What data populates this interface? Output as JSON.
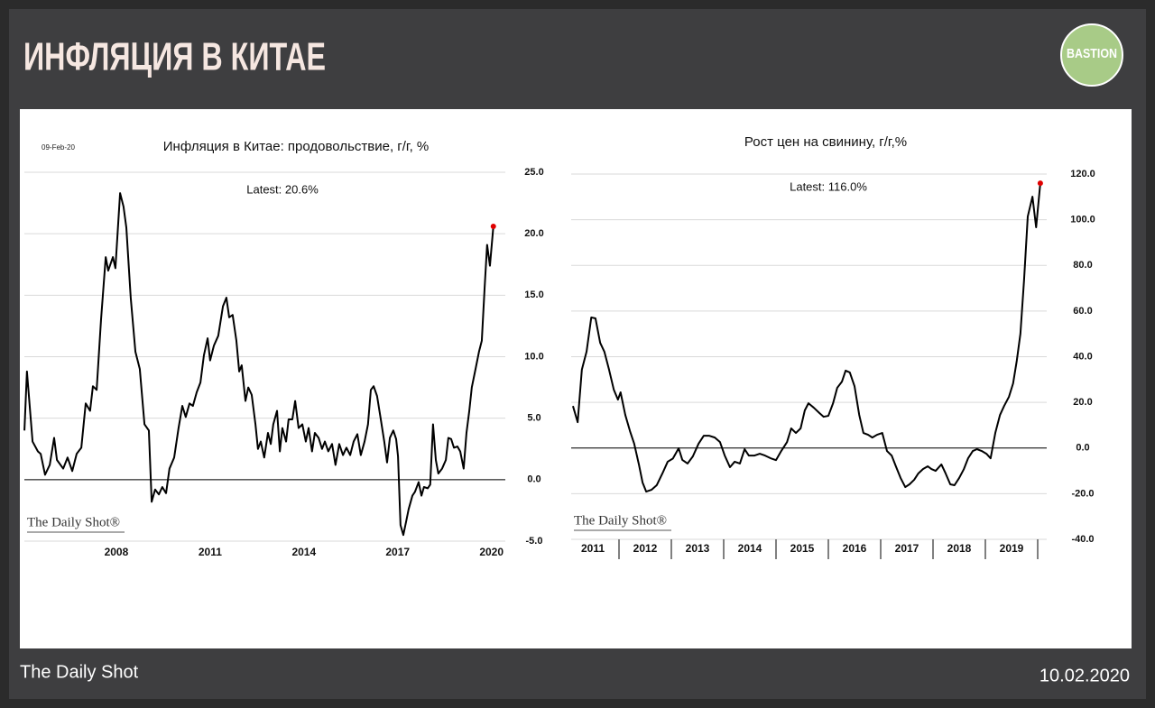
{
  "header": {
    "title": "ИНФЛЯЦИЯ В КИТАЕ",
    "logo": "BASTION"
  },
  "footer": {
    "source": "The Daily Shot",
    "date": "10.02.2020"
  },
  "chart_data": [
    {
      "type": "line",
      "title": "Инфляция в Китае: продовольствие, г/г, %",
      "date": "09-Feb-20",
      "annotation": "Latest:  20.6%",
      "watermark": "The Daily Shot®",
      "color": "#000000",
      "latest_marker_color": "#e00000",
      "grid": true,
      "zero_line": true,
      "xtick_separators": false,
      "xlim": [
        2005,
        2020.5
      ],
      "xticks": [
        2008,
        2011,
        2014,
        2017,
        2020
      ],
      "ylim": [
        -5,
        25
      ],
      "yticks": [
        {
          "value": 25,
          "label": "25.0"
        },
        {
          "value": 20,
          "label": "20.0"
        },
        {
          "value": 15,
          "label": "15.0"
        },
        {
          "value": 10,
          "label": "10.0"
        },
        {
          "value": 5,
          "label": "5.0"
        },
        {
          "value": 0,
          "label": "0.0"
        },
        {
          "value": -5,
          "label": "-5.0"
        }
      ],
      "x": [
        2005.06,
        2005.14,
        2005.32,
        2005.49,
        2005.58,
        2005.72,
        2005.87,
        2006.01,
        2006.1,
        2006.3,
        2006.44,
        2006.59,
        2006.73,
        2006.88,
        2007.02,
        2007.16,
        2007.25,
        2007.37,
        2007.51,
        2007.66,
        2007.74,
        2007.89,
        2007.97,
        2008.12,
        2008.23,
        2008.32,
        2008.46,
        2008.61,
        2008.75,
        2008.9,
        2009.04,
        2009.13,
        2009.24,
        2009.36,
        2009.47,
        2009.59,
        2009.7,
        2009.85,
        2009.99,
        2010.11,
        2010.22,
        2010.34,
        2010.45,
        2010.57,
        2010.69,
        2010.8,
        2010.92,
        2011.0,
        2011.12,
        2011.26,
        2011.41,
        2011.52,
        2011.61,
        2011.72,
        2011.84,
        2011.93,
        2012.01,
        2012.13,
        2012.22,
        2012.33,
        2012.45,
        2012.53,
        2012.62,
        2012.73,
        2012.85,
        2012.94,
        2013.02,
        2013.14,
        2013.23,
        2013.31,
        2013.43,
        2013.51,
        2013.63,
        2013.72,
        2013.83,
        2013.95,
        2014.06,
        2014.15,
        2014.26,
        2014.35,
        2014.47,
        2014.58,
        2014.67,
        2014.78,
        2014.9,
        2015.01,
        2015.13,
        2015.25,
        2015.36,
        2015.48,
        2015.59,
        2015.71,
        2015.82,
        2015.94,
        2016.05,
        2016.14,
        2016.23,
        2016.34,
        2016.46,
        2016.57,
        2016.66,
        2016.75,
        2016.86,
        2016.95,
        2017.01,
        2017.09,
        2017.18,
        2017.27,
        2017.35,
        2017.47,
        2017.55,
        2017.67,
        2017.76,
        2017.84,
        2017.96,
        2018.04,
        2018.13,
        2018.22,
        2018.3,
        2018.42,
        2018.54,
        2018.62,
        2018.71,
        2018.8,
        2018.91,
        2019.0,
        2019.11,
        2019.2,
        2019.29,
        2019.37,
        2019.49,
        2019.6,
        2019.69,
        2019.78,
        2019.86,
        2019.95,
        2020.06
      ],
      "values": [
        4.0,
        8.8,
        3.1,
        2.3,
        2.1,
        0.4,
        1.2,
        3.4,
        1.6,
        0.9,
        1.8,
        0.7,
        2.1,
        2.6,
        6.2,
        5.6,
        7.6,
        7.3,
        13.0,
        18.1,
        17.0,
        18.1,
        17.2,
        23.3,
        22.2,
        20.5,
        14.8,
        10.4,
        9.0,
        4.5,
        4.0,
        -1.8,
        -0.8,
        -1.2,
        -0.6,
        -1.1,
        0.9,
        1.8,
        4.2,
        6.0,
        5.1,
        6.2,
        6.0,
        7.1,
        7.9,
        10.1,
        11.5,
        9.7,
        10.9,
        11.7,
        14.1,
        14.8,
        13.2,
        13.4,
        11.3,
        8.8,
        9.3,
        6.4,
        7.5,
        6.9,
        4.5,
        2.5,
        3.1,
        1.8,
        3.8,
        2.9,
        4.5,
        5.6,
        2.3,
        4.2,
        3.1,
        4.9,
        4.9,
        6.4,
        4.2,
        4.5,
        3.1,
        4.2,
        2.3,
        3.8,
        3.4,
        2.5,
        3.1,
        2.3,
        2.9,
        1.2,
        2.9,
        2.0,
        2.6,
        2.0,
        3.1,
        3.7,
        2.0,
        3.1,
        4.5,
        7.3,
        7.6,
        6.8,
        4.9,
        3.1,
        1.4,
        3.4,
        4.0,
        3.3,
        1.9,
        -3.7,
        -4.5,
        -3.4,
        -2.4,
        -1.3,
        -1.0,
        -0.2,
        -1.3,
        -0.6,
        -0.7,
        -0.4,
        4.5,
        1.6,
        0.5,
        0.9,
        1.6,
        3.4,
        3.3,
        2.6,
        2.7,
        2.3,
        0.9,
        3.8,
        5.6,
        7.5,
        9.0,
        10.4,
        11.3,
        15.6,
        19.1,
        17.4,
        20.6
      ]
    },
    {
      "type": "line",
      "title": "Рост цен на свинину, г/г,%",
      "annotation": "Latest:  116.0%",
      "watermark": "The Daily Shot®",
      "color": "#000000",
      "latest_marker_color": "#e00000",
      "grid": true,
      "zero_line": true,
      "xtick_separators": true,
      "xlim": [
        2011,
        2020
      ],
      "xticks": [
        {
          "value": 2011.5,
          "label": "2011"
        },
        {
          "value": 2012.5,
          "label": "2012"
        },
        {
          "value": 2013.5,
          "label": "2013"
        },
        {
          "value": 2014.5,
          "label": "2014"
        },
        {
          "value": 2015.5,
          "label": "2015"
        },
        {
          "value": 2016.5,
          "label": "2016"
        },
        {
          "value": 2017.5,
          "label": "2017"
        },
        {
          "value": 2018.5,
          "label": "2018"
        },
        {
          "value": 2019.5,
          "label": "2019"
        }
      ],
      "ylim": [
        -40,
        120
      ],
      "yticks": [
        {
          "value": 120,
          "label": "120.0"
        },
        {
          "value": 100,
          "label": "100.0"
        },
        {
          "value": 80,
          "label": "80.0"
        },
        {
          "value": 60,
          "label": "60.0"
        },
        {
          "value": 40,
          "label": "40.0"
        },
        {
          "value": 20,
          "label": "20.0"
        },
        {
          "value": 0,
          "label": "0.0"
        },
        {
          "value": -20,
          "label": "-20.0"
        },
        {
          "value": -40,
          "label": "-40.0"
        }
      ],
      "x": [
        2011.12,
        2011.21,
        2011.29,
        2011.38,
        2011.47,
        2011.55,
        2011.64,
        2011.72,
        2011.81,
        2011.9,
        2011.98,
        2012.03,
        2012.12,
        2012.21,
        2012.29,
        2012.38,
        2012.45,
        2012.52,
        2012.62,
        2012.72,
        2012.83,
        2012.93,
        2013.03,
        2013.14,
        2013.21,
        2013.31,
        2013.41,
        2013.52,
        2013.62,
        2013.72,
        2013.83,
        2013.93,
        2014.02,
        2014.12,
        2014.21,
        2014.31,
        2014.4,
        2014.48,
        2014.59,
        2014.69,
        2014.79,
        2014.9,
        2015.0,
        2015.1,
        2015.21,
        2015.29,
        2015.38,
        2015.47,
        2015.55,
        2015.62,
        2015.72,
        2015.83,
        2015.91,
        2016.0,
        2016.09,
        2016.17,
        2016.26,
        2016.33,
        2016.41,
        2016.5,
        2016.59,
        2016.67,
        2016.76,
        2016.84,
        2016.93,
        2017.03,
        2017.12,
        2017.21,
        2017.29,
        2017.38,
        2017.47,
        2017.55,
        2017.64,
        2017.72,
        2017.81,
        2017.9,
        2017.97,
        2018.05,
        2018.16,
        2018.24,
        2018.33,
        2018.41,
        2018.5,
        2018.59,
        2018.67,
        2018.76,
        2018.84,
        2018.93,
        2019.02,
        2019.1,
        2019.19,
        2019.28,
        2019.36,
        2019.45,
        2019.53,
        2019.6,
        2019.67,
        2019.74,
        2019.81,
        2019.9,
        2019.97,
        2020.05
      ],
      "values": [
        18.4,
        11.3,
        34.3,
        42.2,
        57.2,
        56.8,
        46.1,
        42.2,
        34.3,
        25.6,
        21.2,
        24.4,
        14.5,
        7.4,
        1.9,
        -7.2,
        -15.1,
        -19.1,
        -18.3,
        -16.3,
        -11.1,
        -6.0,
        -4.6,
        -0.1,
        -5.2,
        -6.8,
        -3.7,
        1.9,
        5.4,
        5.4,
        4.6,
        2.6,
        -3.3,
        -8.4,
        -6.0,
        -6.8,
        -0.5,
        -3.3,
        -3.3,
        -2.5,
        -3.3,
        -4.5,
        -5.3,
        -1.3,
        2.6,
        8.6,
        6.6,
        8.6,
        16.5,
        19.6,
        17.7,
        15.3,
        13.7,
        14.1,
        19.6,
        26.4,
        29.1,
        33.9,
        33.1,
        27.1,
        14.5,
        6.6,
        5.8,
        4.6,
        5.8,
        6.6,
        -1.3,
        -3.3,
        -8.0,
        -13.1,
        -17.1,
        -15.9,
        -13.9,
        -11.1,
        -9.2,
        -8.0,
        -9.2,
        -10.0,
        -7.2,
        -11.1,
        -15.9,
        -16.3,
        -13.1,
        -9.2,
        -4.5,
        -1.3,
        -0.5,
        -1.3,
        -2.5,
        -4.5,
        6.6,
        14.5,
        18.5,
        22.4,
        28.3,
        38.2,
        50.1,
        73.8,
        101.4,
        110.1,
        96.7,
        116.0
      ]
    }
  ]
}
